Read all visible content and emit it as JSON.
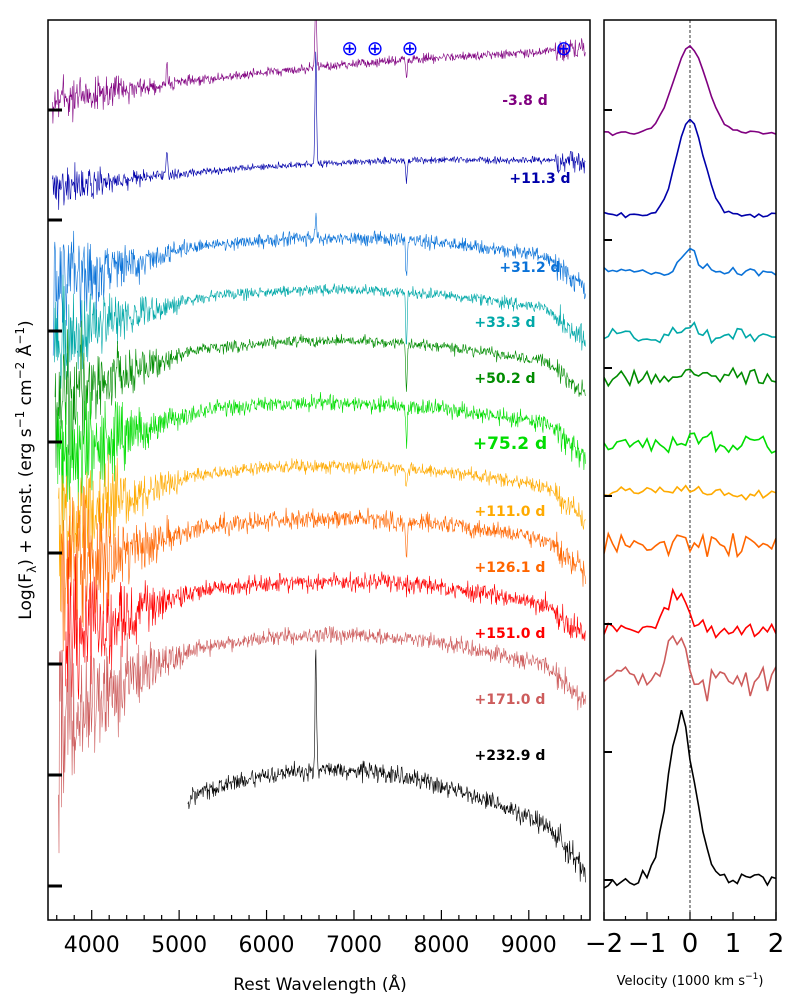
{
  "chart_data": [
    {
      "type": "line",
      "title": "",
      "xlabel": "Rest Wavelength (Å)",
      "ylabel_parts": {
        "main": "Log(F",
        "sub_lambda": "λ",
        "mid": ") + const. (erg s",
        "sup1": "−1",
        "cm": " cm",
        "sup2": "−2",
        "ang": " Å",
        "sup3": "−1",
        "end": ")"
      },
      "xlim": [
        3500,
        9700
      ],
      "xticks": [
        4000,
        5000,
        6000,
        7000,
        8000,
        9000
      ],
      "xtick_labels": [
        "4000",
        "5000",
        "6000",
        "7000",
        "8000",
        "9000"
      ],
      "telluric_marker_symbol": "⊕",
      "telluric_wavelengths": [
        6950,
        7240,
        7640,
        9400
      ],
      "series": [
        {
          "name": "-3.8 d",
          "label": "-3.8 d",
          "color": "#800080",
          "offset": 0.0,
          "start": 3550
        },
        {
          "name": "+11.3 d",
          "label": "+11.3 d",
          "color": "#0000aa",
          "offset": 1.0,
          "start": 3550
        },
        {
          "name": "+31.2 d",
          "label": "+31.2 d",
          "color": "#0a72d8",
          "offset": 2.0,
          "start": 3560
        },
        {
          "name": "+33.3 d",
          "label": "+33.3 d",
          "color": "#00a8a8",
          "offset": 3.0,
          "start": 3570
        },
        {
          "name": "+50.2 d",
          "label": "+50.2 d",
          "color": "#008c00",
          "offset": 4.0,
          "start": 3580
        },
        {
          "name": "+75.2 d",
          "label": "+75.2 d",
          "color": "#00dd00",
          "offset": 5.0,
          "start": 3600
        },
        {
          "name": "+111.0 d",
          "label": "+111.0 d",
          "color": "#ffaa00",
          "offset": 6.0,
          "start": 3620
        },
        {
          "name": "+126.1 d",
          "label": "+126.1 d",
          "color": "#ff6600",
          "offset": 7.0,
          "start": 3650
        },
        {
          "name": "+151.0 d",
          "label": "+151.0 d",
          "color": "#ff0000",
          "offset": 8.0,
          "start": 3700
        },
        {
          "name": "+171.0 d",
          "label": "+171.0 d",
          "color": "#cd5c5c",
          "offset": 9.0,
          "start": 3620
        },
        {
          "name": "+232.9 d",
          "label": "+232.9 d",
          "color": "#000000",
          "offset": 10.5,
          "start": 5100
        }
      ]
    },
    {
      "type": "line",
      "title": "",
      "xlabel_main": "Velocity (1000 km s",
      "xlabel_sup": "−1",
      "xlabel_end": ")",
      "xlim": [
        -2,
        2
      ],
      "xticks": [
        -2,
        -1,
        0,
        1,
        2
      ],
      "xtick_labels": [
        "−2",
        "−1",
        "0",
        "1",
        "2"
      ],
      "reference_line": 0,
      "series_note": "normalized emission-line profiles per epoch, same colours as left panel",
      "series": [
        {
          "name": "-3.8 d",
          "color": "#800080"
        },
        {
          "name": "+11.3 d",
          "color": "#0000aa"
        },
        {
          "name": "+31.2 d",
          "color": "#0a72d8"
        },
        {
          "name": "+33.3 d",
          "color": "#00a8a8"
        },
        {
          "name": "+50.2 d",
          "color": "#008c00"
        },
        {
          "name": "+75.2 d",
          "color": "#00dd00"
        },
        {
          "name": "+111.0 d",
          "color": "#ffaa00"
        },
        {
          "name": "+126.1 d",
          "color": "#ff6600"
        },
        {
          "name": "+151.0 d",
          "color": "#ff0000"
        },
        {
          "name": "+171.0 d",
          "color": "#cd5c5c"
        },
        {
          "name": "+232.9 d",
          "color": "#000000"
        }
      ]
    }
  ]
}
